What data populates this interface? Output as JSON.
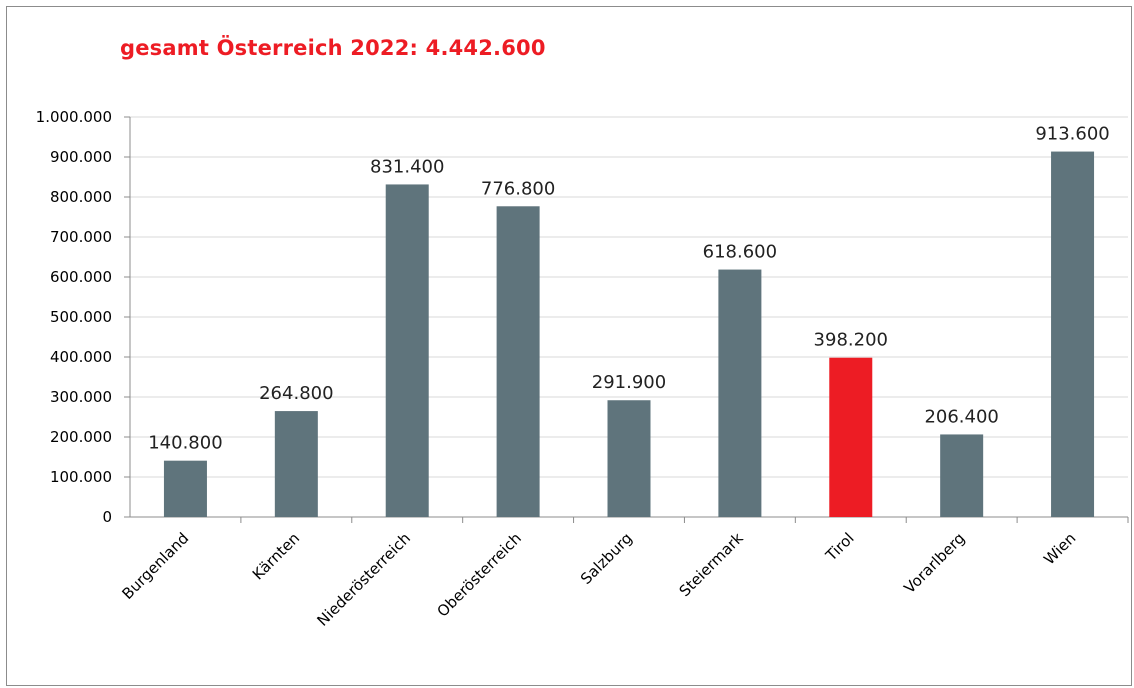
{
  "chart_data": {
    "type": "bar",
    "title": "gesamt Österreich 2022: 4.442.600",
    "xlabel": "",
    "ylabel": "",
    "ylim": [
      0,
      1000000
    ],
    "yticks": [
      0,
      100000,
      200000,
      300000,
      400000,
      500000,
      600000,
      700000,
      800000,
      900000,
      1000000
    ],
    "ytick_labels": [
      "0",
      "100.000",
      "200.000",
      "300.000",
      "400.000",
      "500.000",
      "600.000",
      "700.000",
      "800.000",
      "900.000",
      "1.000.000"
    ],
    "grid": true,
    "legend": "none",
    "categories": [
      "Burgenland",
      "Kärnten",
      "Niederösterreich",
      "Oberösterreich",
      "Salzburg",
      "Steiermark",
      "Tirol",
      "Vorarlberg",
      "Wien"
    ],
    "values": [
      140800,
      264800,
      831400,
      776800,
      291900,
      618600,
      398200,
      206400,
      913600
    ],
    "data_labels": [
      "140.800",
      "264.800",
      "831.400",
      "776.800",
      "291.900",
      "618.600",
      "398.200",
      "206.400",
      "913.600"
    ],
    "highlight_category": "Tirol",
    "colors": {
      "bar": "#5f747c",
      "highlight": "#ed1c24",
      "title": "#ed1c24",
      "grid": "#d9d9d9",
      "axis": "#8c8c8c"
    }
  }
}
